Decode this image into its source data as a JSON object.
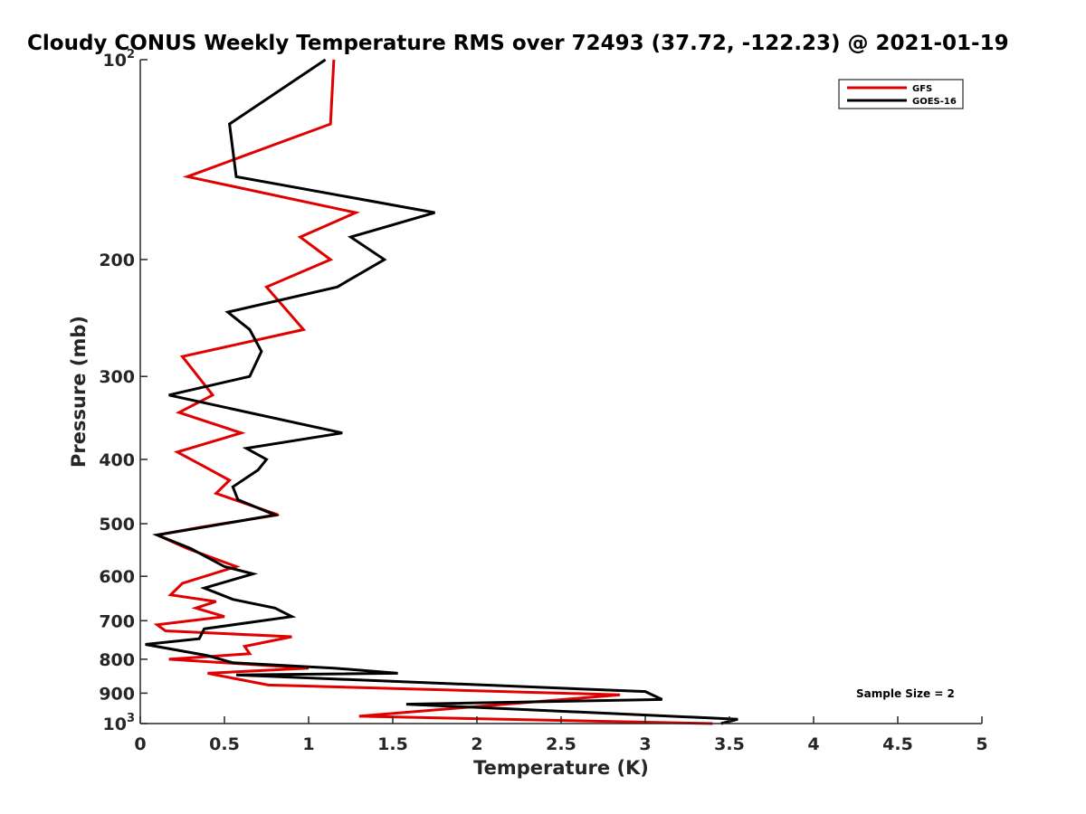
{
  "chart_data": {
    "type": "line",
    "title": "Cloudy CONUS Weekly Temperature RMS over 72493 (37.72, -122.23) @ 2021-01-19",
    "xlabel": "Temperature (K)",
    "ylabel": "Pressure (mb)",
    "xlim": [
      0,
      5
    ],
    "ylim": [
      100,
      1000
    ],
    "y_scale": "log",
    "y_reversed": true,
    "x_ticks": [
      "0",
      "0.5",
      "1",
      "1.5",
      "2",
      "2.5",
      "3",
      "3.5",
      "4",
      "4.5",
      "5"
    ],
    "x_tick_values": [
      0,
      0.5,
      1,
      1.5,
      2,
      2.5,
      3,
      3.5,
      4,
      4.5,
      5
    ],
    "y_ticks": [
      {
        "value": 100,
        "base": "10",
        "exp": "2"
      },
      {
        "value": 200,
        "label": "200"
      },
      {
        "value": 300,
        "label": "300"
      },
      {
        "value": 400,
        "label": "400"
      },
      {
        "value": 500,
        "label": "500"
      },
      {
        "value": 600,
        "label": "600"
      },
      {
        "value": 700,
        "label": "700"
      },
      {
        "value": 800,
        "label": "800"
      },
      {
        "value": 900,
        "label": "900"
      },
      {
        "value": 1000,
        "base": "10",
        "exp": "3"
      }
    ],
    "grid": false,
    "legend_position": "top-right",
    "annotation": "Sample Size = 2",
    "series": [
      {
        "name": "GFS",
        "color": "#e00000",
        "points": [
          [
            1.15,
            100
          ],
          [
            1.13,
            125
          ],
          [
            0.28,
            150
          ],
          [
            1.28,
            170
          ],
          [
            0.95,
            185
          ],
          [
            1.13,
            200
          ],
          [
            0.75,
            220
          ],
          [
            0.97,
            255
          ],
          [
            0.25,
            280
          ],
          [
            0.43,
            320
          ],
          [
            0.23,
            340
          ],
          [
            0.6,
            365
          ],
          [
            0.22,
            390
          ],
          [
            0.38,
            410
          ],
          [
            0.53,
            430
          ],
          [
            0.45,
            450
          ],
          [
            0.82,
            485
          ],
          [
            0.38,
            505
          ],
          [
            0.1,
            520
          ],
          [
            0.28,
            545
          ],
          [
            0.57,
            580
          ],
          [
            0.25,
            615
          ],
          [
            0.18,
            640
          ],
          [
            0.45,
            655
          ],
          [
            0.33,
            670
          ],
          [
            0.5,
            690
          ],
          [
            0.1,
            710
          ],
          [
            0.15,
            725
          ],
          [
            0.9,
            740
          ],
          [
            0.62,
            765
          ],
          [
            0.65,
            785
          ],
          [
            0.17,
            800
          ],
          [
            1.0,
            825
          ],
          [
            0.4,
            840
          ],
          [
            0.76,
            875
          ],
          [
            2.85,
            905
          ],
          [
            1.3,
            975
          ],
          [
            3.4,
            1000
          ]
        ]
      },
      {
        "name": "GOES-16",
        "color": "#000000",
        "points": [
          [
            1.1,
            100
          ],
          [
            0.53,
            125
          ],
          [
            0.57,
            150
          ],
          [
            1.75,
            170
          ],
          [
            1.25,
            185
          ],
          [
            1.45,
            200
          ],
          [
            1.17,
            220
          ],
          [
            0.52,
            240
          ],
          [
            0.65,
            255
          ],
          [
            0.72,
            275
          ],
          [
            0.65,
            300
          ],
          [
            0.17,
            320
          ],
          [
            1.2,
            365
          ],
          [
            0.63,
            385
          ],
          [
            0.75,
            400
          ],
          [
            0.7,
            415
          ],
          [
            0.55,
            440
          ],
          [
            0.58,
            460
          ],
          [
            0.8,
            485
          ],
          [
            0.4,
            505
          ],
          [
            0.1,
            520
          ],
          [
            0.3,
            545
          ],
          [
            0.5,
            580
          ],
          [
            0.67,
            595
          ],
          [
            0.38,
            625
          ],
          [
            0.55,
            650
          ],
          [
            0.8,
            670
          ],
          [
            0.9,
            690
          ],
          [
            0.38,
            720
          ],
          [
            0.35,
            745
          ],
          [
            0.03,
            760
          ],
          [
            0.4,
            790
          ],
          [
            0.55,
            810
          ],
          [
            1.15,
            825
          ],
          [
            1.53,
            840
          ],
          [
            0.57,
            845
          ],
          [
            3.0,
            895
          ],
          [
            3.1,
            920
          ],
          [
            1.58,
            935
          ],
          [
            3.55,
            985
          ],
          [
            3.45,
            1000
          ]
        ]
      }
    ]
  }
}
